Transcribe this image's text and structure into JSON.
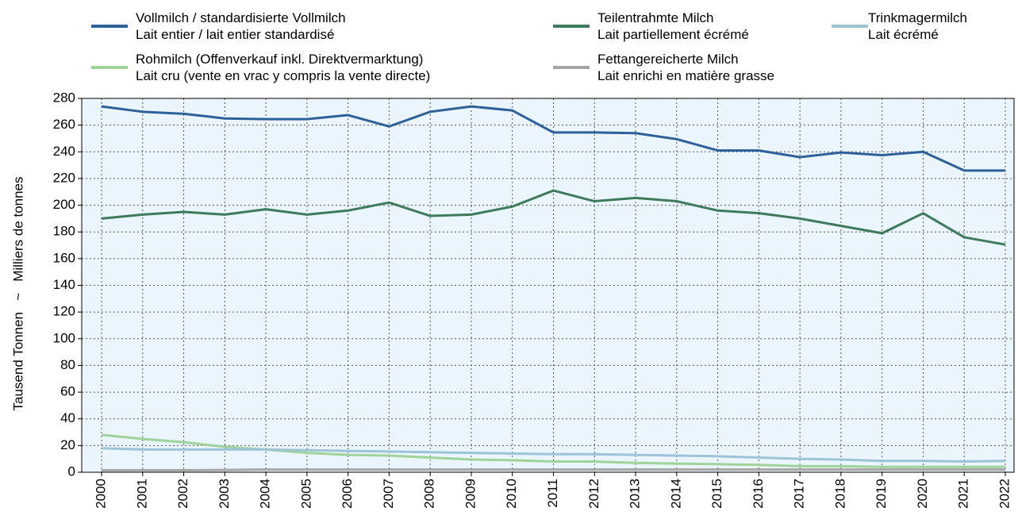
{
  "chart_data": {
    "type": "line",
    "y_label": "Tausend Tonnen   ~   Milliers de tonnes",
    "x": [
      2000,
      2001,
      2002,
      2003,
      2004,
      2005,
      2006,
      2007,
      2008,
      2009,
      2010,
      2011,
      2012,
      2013,
      2014,
      2015,
      2016,
      2017,
      2018,
      2019,
      2020,
      2021,
      2022
    ],
    "xticks": [
      2000,
      2001,
      2002,
      2003,
      2004,
      2005,
      2006,
      2007,
      2008,
      2009,
      2010,
      2011,
      2012,
      2013,
      2014,
      2015,
      2016,
      2017,
      2018,
      2019,
      2020,
      2021,
      2022
    ],
    "ylim": [
      0,
      280
    ],
    "yticks": [
      0,
      20,
      40,
      60,
      80,
      100,
      120,
      140,
      160,
      180,
      200,
      220,
      240,
      260,
      280
    ],
    "grid": true,
    "series": [
      {
        "name": "Vollmilch / standardisierte Vollmilch\nLait entier / lait entier standardisé",
        "color": "#2e6099",
        "values": [
          274,
          270,
          268.5,
          265,
          264.5,
          264.5,
          267.5,
          259,
          270,
          274,
          271,
          254.5,
          254.5,
          254,
          249.5,
          241,
          241,
          236,
          239.5,
          237.5,
          240,
          226,
          226
        ]
      },
      {
        "name": "Teilentrahmte Milch\nLait partiellement écrémé",
        "color": "#3e7a5c",
        "values": [
          190,
          193,
          195,
          193,
          197,
          193,
          196,
          202,
          192,
          193,
          199,
          211,
          203,
          205.5,
          203,
          196,
          194,
          190,
          184.5,
          179,
          194,
          176,
          170.5
        ]
      },
      {
        "name": "Trinkmagermilch\nLait écrémé",
        "color": "#9dc3d6",
        "values": [
          18,
          17,
          17,
          17,
          17,
          16.5,
          16,
          15.5,
          15,
          14.5,
          14,
          13.5,
          13.5,
          13,
          12.5,
          12,
          11,
          10,
          9.5,
          8.5,
          8.5,
          8,
          8.5
        ]
      },
      {
        "name": "Rohmilch (Offenverkauf inkl. Direktvermarktung)\nLait cru (vente en vrac y compris la vente directe)",
        "color": "#9fd39a",
        "values": [
          28,
          25,
          22.5,
          19,
          17,
          14.5,
          13,
          12.5,
          11,
          9.5,
          9,
          8,
          8,
          7,
          6.5,
          6,
          5.5,
          4.5,
          4.5,
          4,
          4,
          4,
          4
        ]
      },
      {
        "name": "Fettangereicherte Milch\nLait enrichi en matière grasse",
        "color": "#a6a6a6",
        "values": [
          1.5,
          1.5,
          1.5,
          1.7,
          2,
          2,
          2,
          2,
          2,
          2,
          2,
          2,
          2,
          2,
          2,
          2,
          2,
          2,
          2,
          2,
          2,
          2,
          2
        ]
      }
    ]
  }
}
